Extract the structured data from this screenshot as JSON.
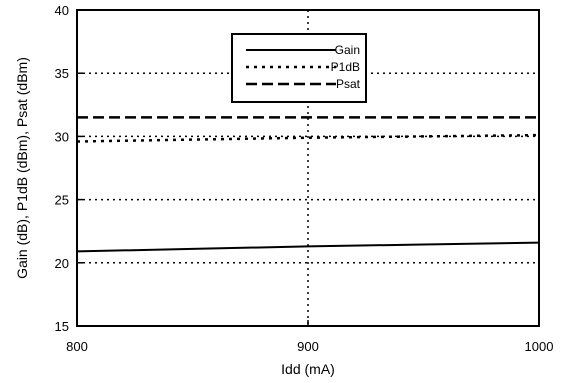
{
  "chart_data": {
    "type": "line",
    "xlabel": "Idd (mA)",
    "ylabel": "Gain (dB), P1dB (dBm), Psat (dBm)",
    "xlim": [
      800,
      1000
    ],
    "ylim": [
      15,
      40
    ],
    "xticks": [
      800,
      900,
      1000
    ],
    "yticks": [
      15,
      20,
      25,
      30,
      35,
      40
    ],
    "grid": true,
    "legend_position": "top-center",
    "series": [
      {
        "name": "Gain",
        "style": "solid",
        "x": [
          800,
          850,
          900,
          950,
          1000
        ],
        "y": [
          20.9,
          21.1,
          21.3,
          21.45,
          21.6
        ]
      },
      {
        "name": "P1dB",
        "style": "dotted",
        "x": [
          800,
          850,
          900,
          950,
          1000
        ],
        "y": [
          29.6,
          29.75,
          29.9,
          30.0,
          30.1
        ]
      },
      {
        "name": "Psat",
        "style": "dashed",
        "x": [
          800,
          850,
          900,
          950,
          1000
        ],
        "y": [
          31.5,
          31.5,
          31.5,
          31.5,
          31.5
        ]
      }
    ]
  }
}
